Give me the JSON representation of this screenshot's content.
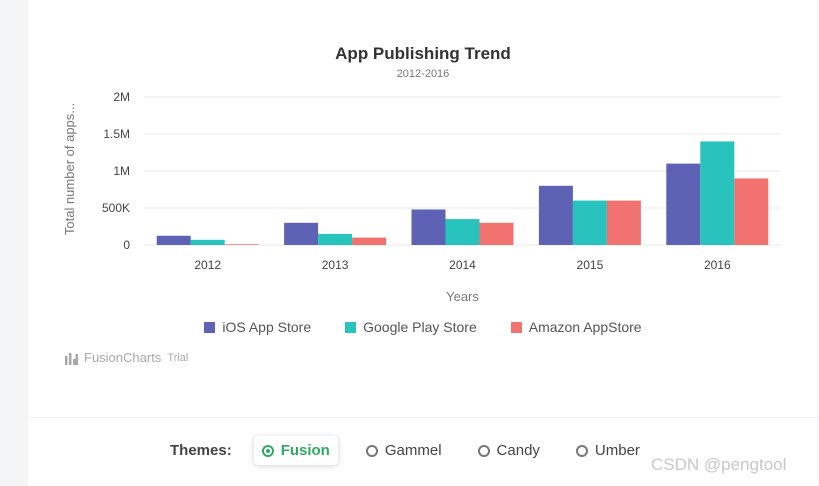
{
  "chart_data": {
    "type": "bar",
    "title": "App Publishing Trend",
    "subtitle": "2012-2016",
    "xlabel": "Years",
    "ylabel": "Total number of apps...",
    "categories": [
      "2012",
      "2013",
      "2014",
      "2015",
      "2016"
    ],
    "series": [
      {
        "name": "iOS App Store",
        "color": "#5d62b5",
        "values": [
          125000,
          300000,
          480000,
          800000,
          1100000
        ]
      },
      {
        "name": "Google Play Store",
        "color": "#29c3be",
        "values": [
          70000,
          150000,
          350000,
          600000,
          1400000
        ]
      },
      {
        "name": "Amazon AppStore",
        "color": "#f2726f",
        "values": [
          10000,
          100000,
          300000,
          600000,
          900000
        ]
      }
    ],
    "ylim": [
      0,
      2000000
    ],
    "yticks": [
      {
        "value": 0,
        "label": "0"
      },
      {
        "value": 500000,
        "label": "500K"
      },
      {
        "value": 1000000,
        "label": "1M"
      },
      {
        "value": 1500000,
        "label": "1.5M"
      },
      {
        "value": 2000000,
        "label": "2M"
      }
    ],
    "legend_position": "bottom",
    "grid": true
  },
  "branding": {
    "logo_icon": "fusioncharts-logo-icon",
    "name": "FusionCharts",
    "trial": "Trial"
  },
  "themes": {
    "label": "Themes:",
    "options": [
      "Fusion",
      "Gammel",
      "Candy",
      "Umber"
    ],
    "selected": "Fusion",
    "accent_color": "#2fa866"
  },
  "watermark": "CSDN @pengtool"
}
